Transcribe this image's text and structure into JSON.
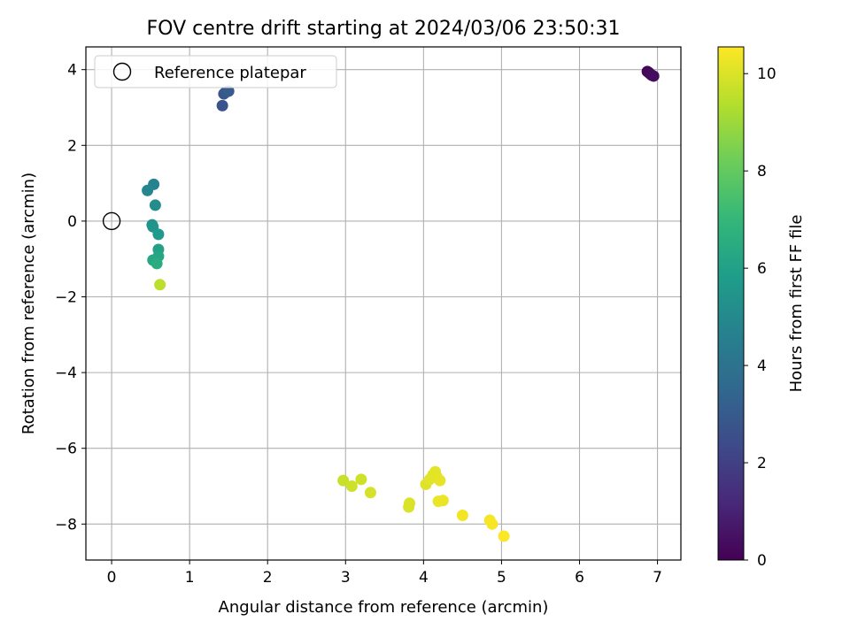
{
  "chart_data": {
    "type": "scatter",
    "title": "FOV centre drift starting at 2024/03/06 23:50:31",
    "xlabel": "Angular distance from reference (arcmin)",
    "ylabel": "Rotation from reference (arcmin)",
    "xlim": [
      -0.33,
      7.3
    ],
    "ylim": [
      -8.95,
      4.6
    ],
    "xticks": [
      0,
      1,
      2,
      3,
      4,
      5,
      6,
      7
    ],
    "yticks": [
      -8,
      -6,
      -4,
      -2,
      0,
      2,
      4
    ],
    "grid": true,
    "legend_placement": "top-left",
    "legend_entries": [
      "Reference platepar"
    ],
    "reference_point": {
      "x": 0,
      "y": 0
    },
    "colorbar": {
      "label": "Hours from first FF file",
      "range": [
        0,
        10.55
      ],
      "ticks": [
        0,
        2,
        4,
        6,
        8,
        10
      ],
      "colormap": "viridis"
    },
    "series": [
      {
        "points": [
          {
            "x": 6.87,
            "y": 3.95,
            "hours": 0.1
          },
          {
            "x": 6.89,
            "y": 3.92,
            "hours": 0.2
          },
          {
            "x": 6.91,
            "y": 3.88,
            "hours": 0.25
          },
          {
            "x": 6.93,
            "y": 3.85,
            "hours": 0.3
          },
          {
            "x": 6.95,
            "y": 3.83,
            "hours": 0.35
          },
          {
            "x": 1.42,
            "y": 3.05,
            "hours": 2.7
          },
          {
            "x": 1.44,
            "y": 3.36,
            "hours": 2.8
          },
          {
            "x": 1.46,
            "y": 3.4,
            "hours": 2.9
          },
          {
            "x": 1.5,
            "y": 3.43,
            "hours": 3.0
          },
          {
            "x": 0.54,
            "y": 0.97,
            "hours": 4.7
          },
          {
            "x": 0.46,
            "y": 0.81,
            "hours": 4.9
          },
          {
            "x": 0.56,
            "y": 0.42,
            "hours": 5.1
          },
          {
            "x": 0.52,
            "y": -0.1,
            "hours": 5.3
          },
          {
            "x": 0.53,
            "y": -0.15,
            "hours": 5.5
          },
          {
            "x": 0.6,
            "y": -0.35,
            "hours": 5.7
          },
          {
            "x": 0.6,
            "y": -0.75,
            "hours": 6.0
          },
          {
            "x": 0.6,
            "y": -0.93,
            "hours": 6.2
          },
          {
            "x": 0.53,
            "y": -1.03,
            "hours": 6.3
          },
          {
            "x": 0.58,
            "y": -1.12,
            "hours": 6.5
          },
          {
            "x": 0.62,
            "y": -1.68,
            "hours": 9.5
          },
          {
            "x": 2.97,
            "y": -6.85,
            "hours": 9.7
          },
          {
            "x": 3.08,
            "y": -7.0,
            "hours": 9.8
          },
          {
            "x": 3.2,
            "y": -6.82,
            "hours": 9.8
          },
          {
            "x": 3.32,
            "y": -7.17,
            "hours": 9.9
          },
          {
            "x": 3.82,
            "y": -7.45,
            "hours": 10.0
          },
          {
            "x": 3.81,
            "y": -7.55,
            "hours": 10.0
          },
          {
            "x": 4.03,
            "y": -6.95,
            "hours": 10.05
          },
          {
            "x": 4.08,
            "y": -6.82,
            "hours": 10.1
          },
          {
            "x": 4.12,
            "y": -6.7,
            "hours": 10.1
          },
          {
            "x": 4.15,
            "y": -6.62,
            "hours": 10.15
          },
          {
            "x": 4.17,
            "y": -6.75,
            "hours": 10.15
          },
          {
            "x": 4.21,
            "y": -6.85,
            "hours": 10.2
          },
          {
            "x": 4.19,
            "y": -7.4,
            "hours": 10.25
          },
          {
            "x": 4.25,
            "y": -7.38,
            "hours": 10.25
          },
          {
            "x": 4.5,
            "y": -7.77,
            "hours": 10.35
          },
          {
            "x": 4.85,
            "y": -7.9,
            "hours": 10.4
          },
          {
            "x": 4.88,
            "y": -8.0,
            "hours": 10.45
          },
          {
            "x": 5.03,
            "y": -8.32,
            "hours": 10.5
          }
        ]
      }
    ]
  }
}
